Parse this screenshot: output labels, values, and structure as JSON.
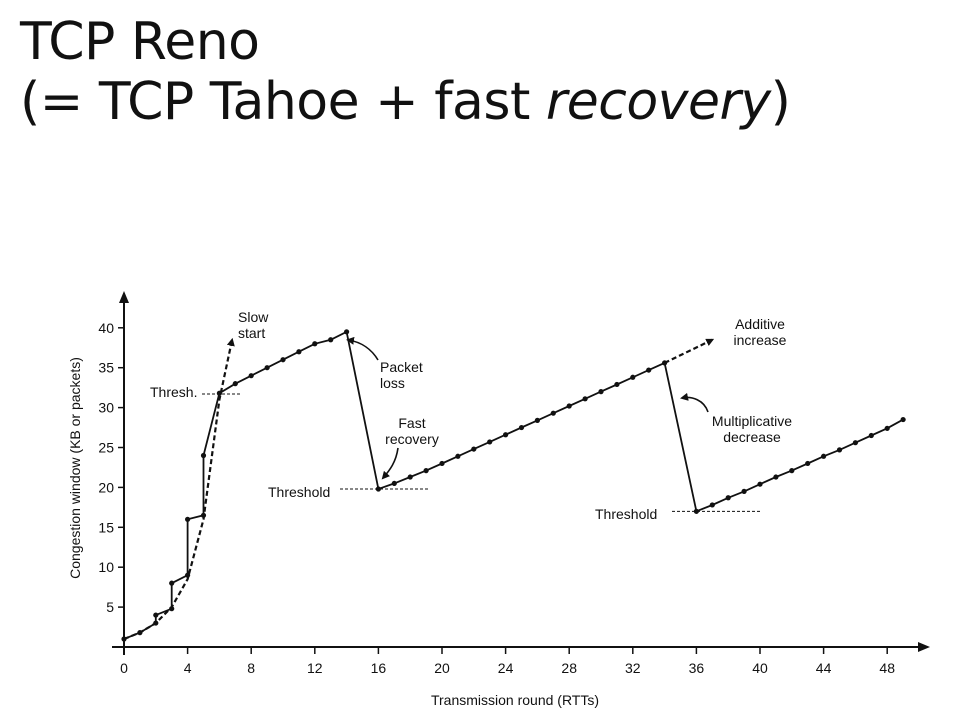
{
  "slide": {
    "title_line1": "TCP Reno",
    "title_line2_prefix": "(= TCP Tahoe + fast ",
    "title_line2_emph": "recovery",
    "title_line2_suffix": ")"
  },
  "chart_data": {
    "type": "line",
    "xlabel": "Transmission round (RTTs)",
    "ylabel": "Congestion window  (KB or packets)",
    "xlim": [
      0,
      49
    ],
    "ylim": [
      0,
      42
    ],
    "xticks": [
      0,
      4,
      8,
      12,
      16,
      20,
      24,
      28,
      32,
      36,
      40,
      44,
      48
    ],
    "yticks": [
      5,
      10,
      15,
      20,
      25,
      30,
      35,
      40
    ],
    "grid": false,
    "series": [
      {
        "style": "solid",
        "points": [
          [
            0,
            1
          ],
          [
            1,
            1.8
          ],
          [
            2,
            3
          ],
          [
            2,
            4
          ],
          [
            3,
            4.8
          ],
          [
            3,
            8
          ],
          [
            4,
            9
          ],
          [
            4,
            16
          ],
          [
            5,
            16.5
          ],
          [
            5,
            24
          ],
          [
            6,
            31.8
          ],
          [
            7,
            33
          ],
          [
            8,
            34
          ],
          [
            9,
            35
          ],
          [
            10,
            36
          ],
          [
            11,
            37
          ],
          [
            12,
            38
          ],
          [
            13,
            38.5
          ],
          [
            14,
            39.5
          ],
          [
            16,
            19.8
          ],
          [
            17,
            20.5
          ],
          [
            18,
            21.3
          ],
          [
            19,
            22.1
          ],
          [
            20,
            23
          ],
          [
            21,
            23.9
          ],
          [
            22,
            24.8
          ],
          [
            23,
            25.7
          ],
          [
            24,
            26.6
          ],
          [
            25,
            27.5
          ],
          [
            26,
            28.4
          ],
          [
            27,
            29.3
          ],
          [
            28,
            30.2
          ],
          [
            29,
            31.1
          ],
          [
            30,
            32
          ],
          [
            31,
            32.9
          ],
          [
            32,
            33.8
          ],
          [
            33,
            34.7
          ],
          [
            34,
            35.6
          ],
          [
            36,
            17
          ],
          [
            37,
            17.8
          ],
          [
            38,
            18.7
          ],
          [
            39,
            19.5
          ],
          [
            40,
            20.4
          ],
          [
            41,
            21.3
          ],
          [
            42,
            22.1
          ],
          [
            43,
            23
          ],
          [
            44,
            23.9
          ],
          [
            45,
            24.7
          ],
          [
            46,
            25.6
          ],
          [
            47,
            26.5
          ],
          [
            48,
            27.4
          ],
          [
            49,
            28.5
          ]
        ]
      },
      {
        "style": "dashed",
        "points": [
          [
            0,
            1
          ],
          [
            1,
            1.8
          ],
          [
            2,
            3
          ],
          [
            3,
            5
          ],
          [
            4,
            8.5
          ],
          [
            5,
            16
          ],
          [
            6,
            31
          ],
          [
            6.8,
            38.5
          ]
        ]
      },
      {
        "style": "dashed",
        "points": [
          [
            34,
            35.6
          ],
          [
            37,
            38.5
          ]
        ]
      }
    ],
    "annotations": [
      {
        "text": "Slow\nstart"
      },
      {
        "text": "Thresh."
      },
      {
        "text": "Packet\nloss"
      },
      {
        "text": "Fast\nrecovery"
      },
      {
        "text": "Threshold"
      },
      {
        "text": "Additive\nincrease"
      },
      {
        "text": "Multiplicative\ndecrease"
      },
      {
        "text": "Threshold"
      }
    ]
  }
}
